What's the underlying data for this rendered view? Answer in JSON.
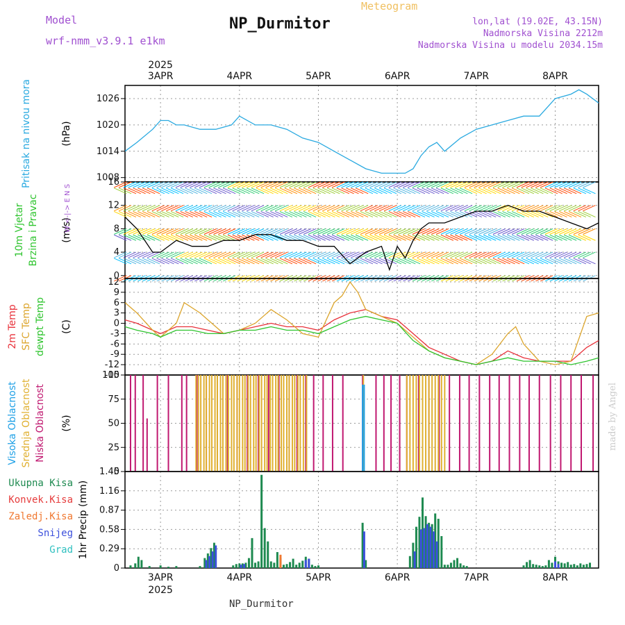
{
  "header": {
    "model_label": "Model",
    "model_name": "wrf-nmm_v3.9.1  e1km",
    "title": "NP_Durmitor",
    "subtitle": "Meteogram",
    "coords": "lon,lat (19.02E, 43.15N)",
    "elevation": "Nadmorska Visina 2212m",
    "model_elevation": "Nadmorska Visina u modelu 2034.15m",
    "footer_station": "NP_Durmitor",
    "watermark": "made by Angel"
  },
  "colors": {
    "pressure": "#29a9e0",
    "temp2m": "#e8313a",
    "sfc_temp": "#dca52c",
    "dewpt": "#2ec42e",
    "visoka": "#1ea0e6",
    "srednja": "#e0b030",
    "niska": "#c01870",
    "ukupna": "#1e8a50",
    "konvek": "#e63c3c",
    "zaledj": "#f07830",
    "snijeg": "#3c50dc",
    "grad": "#30c0c0",
    "wind_obs": "#e03030",
    "wind_line": "#000000"
  },
  "chart_data": {
    "time_axis": {
      "days": [
        "3APR",
        "4APR",
        "5APR",
        "6APR",
        "7APR",
        "8APR"
      ],
      "year": "2025",
      "range_days": [
        2.55,
        8.55
      ]
    },
    "panels": [
      {
        "id": "pressure",
        "type": "line",
        "ylabel_lines": [
          "Pritisak na nivou mora"
        ],
        "unit": "(hPa)",
        "yticks": [
          1008,
          1014,
          1020,
          1026
        ],
        "ylim": [
          1007,
          1029
        ],
        "series": [
          {
            "color_key": "pressure",
            "x": [
              2.55,
              2.7,
              2.9,
              3.0,
              3.1,
              3.2,
              3.3,
              3.5,
              3.7,
              3.9,
              4.0,
              4.2,
              4.4,
              4.6,
              4.8,
              5.0,
              5.2,
              5.4,
              5.6,
              5.8,
              6.0,
              6.1,
              6.2,
              6.3,
              6.4,
              6.5,
              6.6,
              6.8,
              7.0,
              7.2,
              7.4,
              7.6,
              7.8,
              8.0,
              8.2,
              8.3,
              8.4,
              8.55
            ],
            "y": [
              1014,
              1016,
              1019,
              1021,
              1021,
              1020,
              1020,
              1019,
              1019,
              1020,
              1022,
              1020,
              1020,
              1019,
              1017,
              1016,
              1014,
              1012,
              1010,
              1009,
              1009,
              1009,
              1010,
              1013,
              1015,
              1016,
              1014,
              1017,
              1019,
              1020,
              1021,
              1022,
              1022,
              1026,
              1027,
              1028,
              1027,
              1025
            ]
          }
        ]
      },
      {
        "id": "wind",
        "type": "line",
        "ylabel_lines": [
          "10m Vjetar",
          "Brzina i Pravac"
        ],
        "unit": "(m/s)",
        "direction_legend": [
          "N",
          "S",
          "W",
          "E"
        ],
        "yticks": [
          0,
          4,
          8,
          12,
          16
        ],
        "ylim": [
          -0.5,
          16
        ],
        "series": [
          {
            "name": "",
            "color_key": "wind_line",
            "x": [
              2.55,
              2.7,
              2.9,
              3.0,
              3.2,
              3.4,
              3.6,
              3.8,
              4.0,
              4.2,
              4.4,
              4.6,
              4.8,
              5.0,
              5.2,
              5.4,
              5.6,
              5.8,
              5.9,
              6.0,
              6.1,
              6.2,
              6.3,
              6.4,
              6.6,
              6.8,
              7.0,
              7.2,
              7.4,
              7.6,
              7.8,
              8.0,
              8.2,
              8.4,
              8.55
            ],
            "y": [
              10,
              8,
              4,
              4,
              6,
              5,
              5,
              6,
              6,
              7,
              7,
              6,
              6,
              5,
              5,
              2,
              4,
              5,
              1,
              5,
              3,
              6,
              8,
              9,
              9,
              10,
              11,
              11,
              12,
              11,
              11,
              10,
              9,
              8,
              9
            ]
          }
        ],
        "barb_rows": [
          0,
          2,
          4,
          6,
          8,
          10,
          12,
          14,
          16
        ]
      },
      {
        "id": "temperature",
        "type": "line",
        "ylabel_lines": [
          "2m Temp",
          "SFC Temp",
          "dewpt Temp"
        ],
        "unit": "(C)",
        "yticks": [
          12,
          9,
          6,
          3,
          0,
          -3,
          -6,
          -9,
          -12,
          -15
        ],
        "ylim": [
          -15,
          13
        ],
        "series": [
          {
            "name": "2m Temp",
            "color_key": "temp2m",
            "x": [
              2.55,
              2.7,
              2.9,
              3.0,
              3.2,
              3.4,
              3.6,
              3.8,
              4.0,
              4.2,
              4.4,
              4.6,
              4.8,
              5.0,
              5.2,
              5.4,
              5.6,
              5.8,
              6.0,
              6.2,
              6.4,
              6.6,
              6.8,
              7.0,
              7.2,
              7.4,
              7.6,
              7.8,
              8.0,
              8.2,
              8.4,
              8.55
            ],
            "y": [
              1,
              0,
              -2,
              -3,
              -1,
              -1,
              -2,
              -3,
              -2,
              -1,
              0,
              -1,
              -1,
              -2,
              1,
              3,
              4,
              2,
              1,
              -3,
              -7,
              -9,
              -11,
              -12,
              -11,
              -8,
              -10,
              -11,
              -11,
              -11,
              -7,
              -5
            ]
          },
          {
            "name": "SFC Temp",
            "color_key": "sfc_temp",
            "x": [
              2.55,
              2.7,
              2.9,
              3.0,
              3.2,
              3.3,
              3.5,
              3.6,
              3.8,
              4.0,
              4.2,
              4.4,
              4.6,
              4.8,
              5.0,
              5.2,
              5.3,
              5.4,
              5.5,
              5.6,
              5.8,
              6.0,
              6.2,
              6.4,
              6.6,
              6.8,
              7.0,
              7.2,
              7.4,
              7.5,
              7.6,
              7.8,
              8.0,
              8.2,
              8.4,
              8.55
            ],
            "y": [
              6,
              3,
              -2,
              -4,
              0,
              6,
              3,
              1,
              -3,
              -2,
              0,
              4,
              1,
              -3,
              -4,
              6,
              8,
              12,
              9,
              4,
              2,
              0,
              -4,
              -8,
              -10,
              -11,
              -12,
              -9,
              -3,
              -1,
              -6,
              -11,
              -12,
              -11,
              2,
              3
            ]
          },
          {
            "name": "dewpt Temp",
            "color_key": "dewpt",
            "x": [
              2.55,
              2.7,
              2.9,
              3.0,
              3.2,
              3.4,
              3.6,
              3.8,
              4.0,
              4.2,
              4.4,
              4.6,
              4.8,
              5.0,
              5.2,
              5.4,
              5.6,
              5.8,
              6.0,
              6.2,
              6.4,
              6.6,
              6.8,
              7.0,
              7.2,
              7.4,
              7.6,
              7.8,
              8.0,
              8.2,
              8.4,
              8.55
            ],
            "y": [
              -1,
              -2,
              -3,
              -4,
              -2,
              -2,
              -3,
              -3,
              -2,
              -2,
              -1,
              -2,
              -2,
              -3,
              -1,
              1,
              2,
              1,
              0,
              -5,
              -8,
              -10,
              -11,
              -12,
              -11,
              -10,
              -11,
              -11,
              -11,
              -12,
              -11,
              -10
            ]
          }
        ]
      },
      {
        "id": "clouds",
        "type": "bar",
        "ylabel_lines": [
          "Visoka Oblacnost",
          "Srednja Oblacnost",
          "Niska Oblacnost"
        ],
        "unit": "(%)",
        "yticks": [
          0,
          25,
          50,
          75,
          100
        ],
        "ylim": [
          0,
          100
        ],
        "series": [
          {
            "name": "Niska Oblacnost",
            "color_key": "niska",
            "x": [
              2.62,
              2.68,
              2.78,
              2.83,
              2.96,
              3.1,
              3.27,
              3.33,
              3.46,
              3.58,
              3.72,
              3.85,
              3.97,
              4.1,
              4.24,
              4.37,
              4.5,
              4.63,
              4.73,
              4.84,
              4.94,
              5.06,
              5.18,
              5.31,
              5.56,
              5.73,
              5.83,
              5.92,
              6.03,
              6.12,
              6.27,
              6.4,
              6.53,
              6.66,
              6.79,
              6.91,
              7.04,
              7.17,
              7.29,
              7.42,
              7.55,
              7.67,
              7.8,
              7.94,
              8.07,
              8.2,
              8.33,
              8.48
            ],
            "y": [
              100,
              100,
              100,
              55,
              100,
              100,
              100,
              100,
              100,
              100,
              100,
              100,
              100,
              100,
              100,
              100,
              100,
              100,
              100,
              100,
              100,
              100,
              100,
              100,
              100,
              100,
              100,
              100,
              100,
              100,
              100,
              100,
              100,
              100,
              100,
              100,
              100,
              100,
              100,
              100,
              100,
              100,
              100,
              100,
              100,
              100,
              100,
              100
            ]
          },
          {
            "name": "Srednja Oblacnost",
            "color_key": "srednja",
            "x": [
              3.45,
              3.48,
              3.51,
              3.55,
              3.58,
              3.62,
              3.65,
              3.69,
              3.72,
              3.76,
              3.79,
              3.83,
              3.86,
              3.9,
              3.93,
              3.97,
              4.0,
              4.04,
              4.07,
              4.11,
              4.14,
              4.18,
              4.21,
              4.25,
              4.28,
              4.32,
              4.35,
              4.39,
              4.42,
              4.46,
              4.49,
              4.53,
              4.56,
              4.6,
              4.63,
              4.67,
              4.7,
              4.74,
              4.77,
              4.81,
              4.85,
              5.57,
              6.12,
              6.16,
              6.2,
              6.24,
              6.28,
              6.32,
              6.36,
              6.4,
              6.44,
              6.48,
              6.52,
              6.56,
              6.6
            ],
            "y": [
              100,
              100,
              100,
              100,
              100,
              100,
              100,
              100,
              100,
              100,
              100,
              100,
              100,
              100,
              100,
              100,
              100,
              100,
              100,
              100,
              100,
              100,
              100,
              100,
              100,
              100,
              100,
              100,
              100,
              100,
              100,
              100,
              100,
              100,
              100,
              100,
              100,
              100,
              100,
              100,
              100,
              100,
              100,
              100,
              100,
              100,
              100,
              100,
              100,
              100,
              100,
              100,
              100,
              100,
              100
            ]
          },
          {
            "name": "Visoka Oblacnost",
            "color_key": "visoka",
            "x": [
              5.56,
              5.58
            ],
            "y": [
              90,
              90
            ]
          }
        ]
      },
      {
        "id": "precip",
        "type": "bar",
        "ylabel_lines": [
          "Ukupna Kisa",
          "Konvek.Kisa",
          "Zaledj.Kisa",
          "Snijeg",
          "Grad"
        ],
        "unit": "1hr Precip (mm)",
        "yticks": [
          0,
          0.29,
          0.58,
          0.87,
          1.16,
          1.45
        ],
        "ylim": [
          0,
          1.45
        ],
        "series": [
          {
            "name": "Ukupna Kisa",
            "color_key": "ukupna",
            "x": [
              2.62,
              2.68,
              2.72,
              2.76,
              2.86,
              3.0,
              3.1,
              3.2,
              3.5,
              3.56,
              3.6,
              3.64,
              3.68,
              3.92,
              3.96,
              4.0,
              4.04,
              4.08,
              4.12,
              4.16,
              4.2,
              4.24,
              4.28,
              4.32,
              4.36,
              4.4,
              4.44,
              4.48,
              4.52,
              4.56,
              4.6,
              4.64,
              4.68,
              4.72,
              4.76,
              4.8,
              4.84,
              4.88,
              4.92,
              4.96,
              5.0,
              5.56,
              5.6,
              6.16,
              6.2,
              6.24,
              6.28,
              6.32,
              6.36,
              6.4,
              6.44,
              6.48,
              6.52,
              6.56,
              6.6,
              6.64,
              6.68,
              6.72,
              6.76,
              6.8,
              6.84,
              6.88,
              7.6,
              7.64,
              7.68,
              7.72,
              7.76,
              7.8,
              7.84,
              7.88,
              7.92,
              7.96,
              8.0,
              8.04,
              8.08,
              8.12,
              8.16,
              8.2,
              8.24,
              8.28,
              8.32,
              8.36,
              8.4,
              8.44
            ],
            "y": [
              0.04,
              0.07,
              0.17,
              0.12,
              0.03,
              0.04,
              0.02,
              0.03,
              0.03,
              0.15,
              0.22,
              0.3,
              0.38,
              0.04,
              0.06,
              0.07,
              0.07,
              0.08,
              0.15,
              0.45,
              0.08,
              0.1,
              1.4,
              0.6,
              0.4,
              0.1,
              0.08,
              0.24,
              0.15,
              0.05,
              0.06,
              0.09,
              0.14,
              0.05,
              0.08,
              0.11,
              0.17,
              0.14,
              0.05,
              0.03,
              0.04,
              0.68,
              0.12,
              0.18,
              0.38,
              0.62,
              0.77,
              1.06,
              0.78,
              0.68,
              0.66,
              0.82,
              0.74,
              0.48,
              0.05,
              0.05,
              0.08,
              0.12,
              0.15,
              0.07,
              0.04,
              0.03,
              0.04,
              0.09,
              0.12,
              0.06,
              0.05,
              0.04,
              0.03,
              0.04,
              0.12,
              0.08,
              0.17,
              0.1,
              0.08,
              0.07,
              0.09,
              0.05,
              0.06,
              0.04,
              0.07,
              0.05,
              0.06,
              0.08
            ]
          },
          {
            "name": "Konvek.Kisa",
            "color_key": "konvek",
            "x": [
              5.58
            ],
            "y": [
              0.02
            ]
          },
          {
            "name": "Zaledj.Kisa",
            "color_key": "zaledj",
            "x": [
              4.52
            ],
            "y": [
              0.2
            ]
          },
          {
            "name": "Snijeg",
            "color_key": "snijeg",
            "x": [
              3.58,
              3.62,
              3.66,
              3.7,
              4.02,
              4.06,
              4.84,
              4.88,
              5.58,
              6.22,
              6.3,
              6.34,
              6.38,
              6.42,
              6.46,
              6.5,
              8.0,
              8.04
            ],
            "y": [
              0.12,
              0.18,
              0.25,
              0.34,
              0.05,
              0.06,
              0.12,
              0.14,
              0.55,
              0.25,
              0.58,
              0.6,
              0.66,
              0.62,
              0.55,
              0.4,
              0.1,
              0.06
            ]
          },
          {
            "name": "Grad",
            "color_key": "grad",
            "x": [],
            "y": []
          }
        ]
      }
    ]
  }
}
